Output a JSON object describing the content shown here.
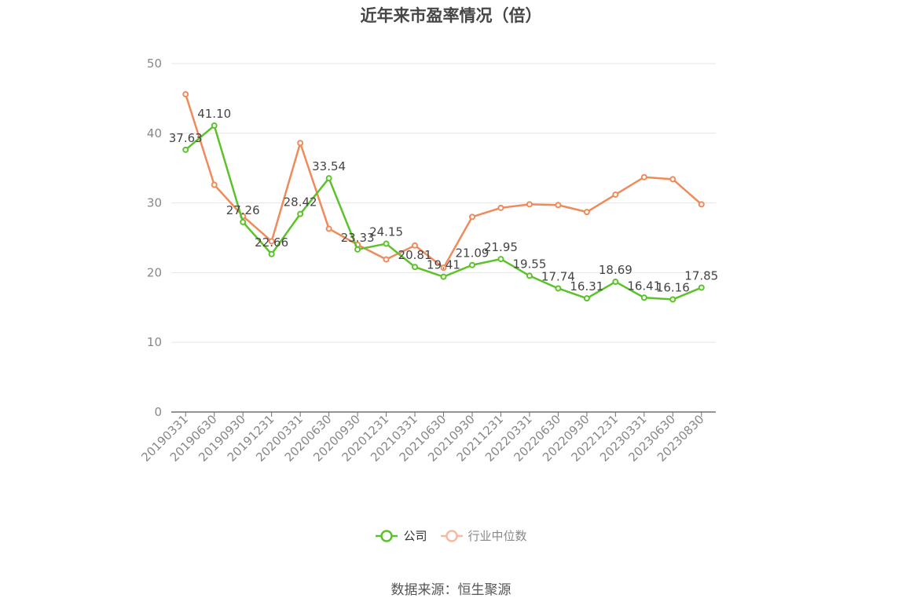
{
  "title": "近年来市盈率情况（倍）",
  "source": "数据来源：恒生聚源",
  "colors": {
    "company": "#5cc22a",
    "industry": "#f08a5a",
    "industry_legend": "#f7b9a0",
    "grid": "#e6e6e6",
    "axis": "#6e7079",
    "tick_text": "#888888",
    "label_text": "#444444"
  },
  "chart_data": {
    "type": "line",
    "categories": [
      "20190331",
      "20190630",
      "20190930",
      "20191231",
      "20200331",
      "20200630",
      "20200930",
      "20201231",
      "20210331",
      "20210630",
      "20210930",
      "20211231",
      "20220331",
      "20220630",
      "20220930",
      "20221231",
      "20230331",
      "20230630",
      "20230830"
    ],
    "ylim": [
      0,
      50
    ],
    "yticks": [
      "0",
      "10",
      "20",
      "30",
      "40",
      "50"
    ],
    "grid": true,
    "legend_position": "bottom-center",
    "series": [
      {
        "name": "公司",
        "values": [
          37.63,
          41.1,
          27.26,
          22.66,
          28.42,
          33.54,
          23.33,
          24.15,
          20.81,
          19.41,
          21.09,
          21.95,
          19.55,
          17.74,
          16.31,
          18.69,
          16.41,
          16.16,
          17.85
        ],
        "labels": [
          "37.63",
          "41.10",
          "27.26",
          "22.66",
          "28.42",
          "33.54",
          "23.33",
          "24.15",
          "20.81",
          "19.41",
          "21.09",
          "21.95",
          "19.55",
          "17.74",
          "16.31",
          "18.69",
          "16.41",
          "16.16",
          "17.85"
        ]
      },
      {
        "name": "行业中位数",
        "values": [
          45.6,
          32.6,
          28.1,
          24.5,
          38.6,
          26.3,
          24.0,
          21.9,
          23.9,
          20.7,
          28.0,
          29.3,
          29.8,
          29.7,
          28.7,
          31.2,
          33.7,
          33.4,
          29.8
        ]
      }
    ]
  }
}
